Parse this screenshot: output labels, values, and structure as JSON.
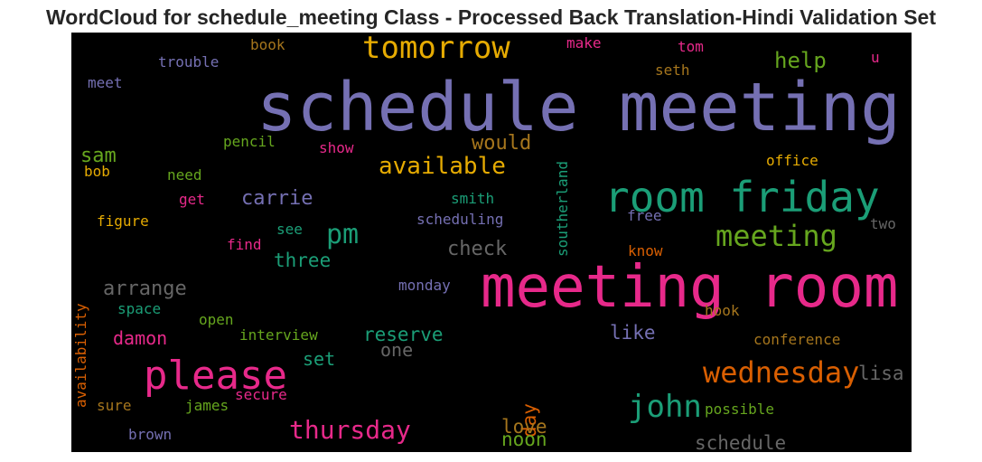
{
  "chart_data": {
    "type": "wordcloud",
    "title": "WordCloud for schedule_meeting Class - Processed Back Translation-Hindi Validation Set",
    "background": "#000000",
    "colormap": "Dark2",
    "words": [
      {
        "text": "schedule meeting",
        "weight": 1.0,
        "color": "#7570b3",
        "orientation": "horizontal"
      },
      {
        "text": "meeting room",
        "weight": 0.86,
        "color": "#e7298a",
        "orientation": "horizontal"
      },
      {
        "text": "room friday",
        "weight": 0.62,
        "color": "#1b9e77",
        "orientation": "horizontal"
      },
      {
        "text": "please",
        "weight": 0.6,
        "color": "#e7298a",
        "orientation": "horizontal"
      },
      {
        "text": "tomorrow",
        "weight": 0.45,
        "color": "#e6ab02",
        "orientation": "horizontal"
      },
      {
        "text": "john",
        "weight": 0.45,
        "color": "#1b9e77",
        "orientation": "horizontal"
      },
      {
        "text": "wednesday",
        "weight": 0.42,
        "color": "#d95f02",
        "orientation": "horizontal"
      },
      {
        "text": "meeting",
        "weight": 0.4,
        "color": "#66a61e",
        "orientation": "horizontal"
      },
      {
        "text": "pm",
        "weight": 0.38,
        "color": "#1b9e77",
        "orientation": "horizontal"
      },
      {
        "text": "thursday",
        "weight": 0.37,
        "color": "#e7298a",
        "orientation": "horizontal"
      },
      {
        "text": "available",
        "weight": 0.34,
        "color": "#e6ab02",
        "orientation": "horizontal"
      },
      {
        "text": "help",
        "weight": 0.31,
        "color": "#66a61e",
        "orientation": "horizontal"
      },
      {
        "text": "would",
        "weight": 0.29,
        "color": "#a6761d",
        "orientation": "horizontal"
      },
      {
        "text": "carrie",
        "weight": 0.28,
        "color": "#7570b3",
        "orientation": "horizontal"
      },
      {
        "text": "check",
        "weight": 0.28,
        "color": "#666666",
        "orientation": "horizontal"
      },
      {
        "text": "arrange",
        "weight": 0.28,
        "color": "#666666",
        "orientation": "horizontal"
      },
      {
        "text": "sam",
        "weight": 0.28,
        "color": "#66a61e",
        "orientation": "horizontal"
      },
      {
        "text": "three",
        "weight": 0.27,
        "color": "#1b9e77",
        "orientation": "horizontal"
      },
      {
        "text": "reserve",
        "weight": 0.27,
        "color": "#1b9e77",
        "orientation": "horizontal"
      },
      {
        "text": "like",
        "weight": 0.27,
        "color": "#7570b3",
        "orientation": "horizontal"
      },
      {
        "text": "day",
        "weight": 0.27,
        "color": "#d95f02",
        "orientation": "vertical"
      },
      {
        "text": "lisa",
        "weight": 0.27,
        "color": "#666666",
        "orientation": "horizontal"
      },
      {
        "text": "love",
        "weight": 0.27,
        "color": "#a6761d",
        "orientation": "horizontal"
      },
      {
        "text": "noon",
        "weight": 0.27,
        "color": "#66a61e",
        "orientation": "horizontal"
      },
      {
        "text": "schedule",
        "weight": 0.27,
        "color": "#666666",
        "orientation": "horizontal"
      },
      {
        "text": "set",
        "weight": 0.26,
        "color": "#1b9e77",
        "orientation": "horizontal"
      },
      {
        "text": "one",
        "weight": 0.26,
        "color": "#666666",
        "orientation": "horizontal"
      },
      {
        "text": "damon",
        "weight": 0.25,
        "color": "#e7298a",
        "orientation": "horizontal"
      },
      {
        "text": "southerland",
        "weight": 0.2,
        "color": "#1b9e77",
        "orientation": "vertical"
      },
      {
        "text": "availability",
        "weight": 0.2,
        "color": "#d95f02",
        "orientation": "vertical"
      },
      {
        "text": "office",
        "weight": 0.2,
        "color": "#e6ab02",
        "orientation": "horizontal"
      },
      {
        "text": "trouble",
        "weight": 0.2,
        "color": "#7570b3",
        "orientation": "horizontal"
      },
      {
        "text": "book",
        "weight": 0.2,
        "color": "#a6761d",
        "orientation": "horizontal"
      },
      {
        "text": "make",
        "weight": 0.2,
        "color": "#e7298a",
        "orientation": "horizontal"
      },
      {
        "text": "tom",
        "weight": 0.2,
        "color": "#e7298a",
        "orientation": "horizontal"
      },
      {
        "text": "u",
        "weight": 0.2,
        "color": "#e7298a",
        "orientation": "horizontal"
      },
      {
        "text": "seth",
        "weight": 0.2,
        "color": "#a6761d",
        "orientation": "horizontal"
      },
      {
        "text": "meet",
        "weight": 0.2,
        "color": "#7570b3",
        "orientation": "horizontal"
      },
      {
        "text": "pencil",
        "weight": 0.2,
        "color": "#66a61e",
        "orientation": "horizontal"
      },
      {
        "text": "show",
        "weight": 0.2,
        "color": "#e7298a",
        "orientation": "horizontal"
      },
      {
        "text": "bob",
        "weight": 0.2,
        "color": "#e6ab02",
        "orientation": "horizontal"
      },
      {
        "text": "need",
        "weight": 0.2,
        "color": "#66a61e",
        "orientation": "horizontal"
      },
      {
        "text": "get",
        "weight": 0.2,
        "color": "#e7298a",
        "orientation": "horizontal"
      },
      {
        "text": "smith",
        "weight": 0.2,
        "color": "#1b9e77",
        "orientation": "horizontal"
      },
      {
        "text": "figure",
        "weight": 0.2,
        "color": "#e6ab02",
        "orientation": "horizontal"
      },
      {
        "text": "scheduling",
        "weight": 0.2,
        "color": "#7570b3",
        "orientation": "horizontal"
      },
      {
        "text": "free",
        "weight": 0.2,
        "color": "#7570b3",
        "orientation": "horizontal"
      },
      {
        "text": "two",
        "weight": 0.2,
        "color": "#666666",
        "orientation": "horizontal"
      },
      {
        "text": "see",
        "weight": 0.2,
        "color": "#1b9e77",
        "orientation": "horizontal"
      },
      {
        "text": "find",
        "weight": 0.2,
        "color": "#e7298a",
        "orientation": "horizontal"
      },
      {
        "text": "know",
        "weight": 0.2,
        "color": "#d95f02",
        "orientation": "horizontal"
      },
      {
        "text": "monday",
        "weight": 0.2,
        "color": "#7570b3",
        "orientation": "horizontal"
      },
      {
        "text": "space",
        "weight": 0.2,
        "color": "#1b9e77",
        "orientation": "horizontal"
      },
      {
        "text": "hook",
        "weight": 0.2,
        "color": "#a6761d",
        "orientation": "horizontal"
      },
      {
        "text": "open",
        "weight": 0.2,
        "color": "#66a61e",
        "orientation": "horizontal"
      },
      {
        "text": "interview",
        "weight": 0.2,
        "color": "#66a61e",
        "orientation": "horizontal"
      },
      {
        "text": "conference",
        "weight": 0.2,
        "color": "#a6761d",
        "orientation": "horizontal"
      },
      {
        "text": "secure",
        "weight": 0.2,
        "color": "#e7298a",
        "orientation": "horizontal"
      },
      {
        "text": "sure",
        "weight": 0.2,
        "color": "#a6761d",
        "orientation": "horizontal"
      },
      {
        "text": "james",
        "weight": 0.2,
        "color": "#66a61e",
        "orientation": "horizontal"
      },
      {
        "text": "possible",
        "weight": 0.2,
        "color": "#66a61e",
        "orientation": "horizontal"
      },
      {
        "text": "brown",
        "weight": 0.2,
        "color": "#7570b3",
        "orientation": "horizontal"
      }
    ]
  }
}
